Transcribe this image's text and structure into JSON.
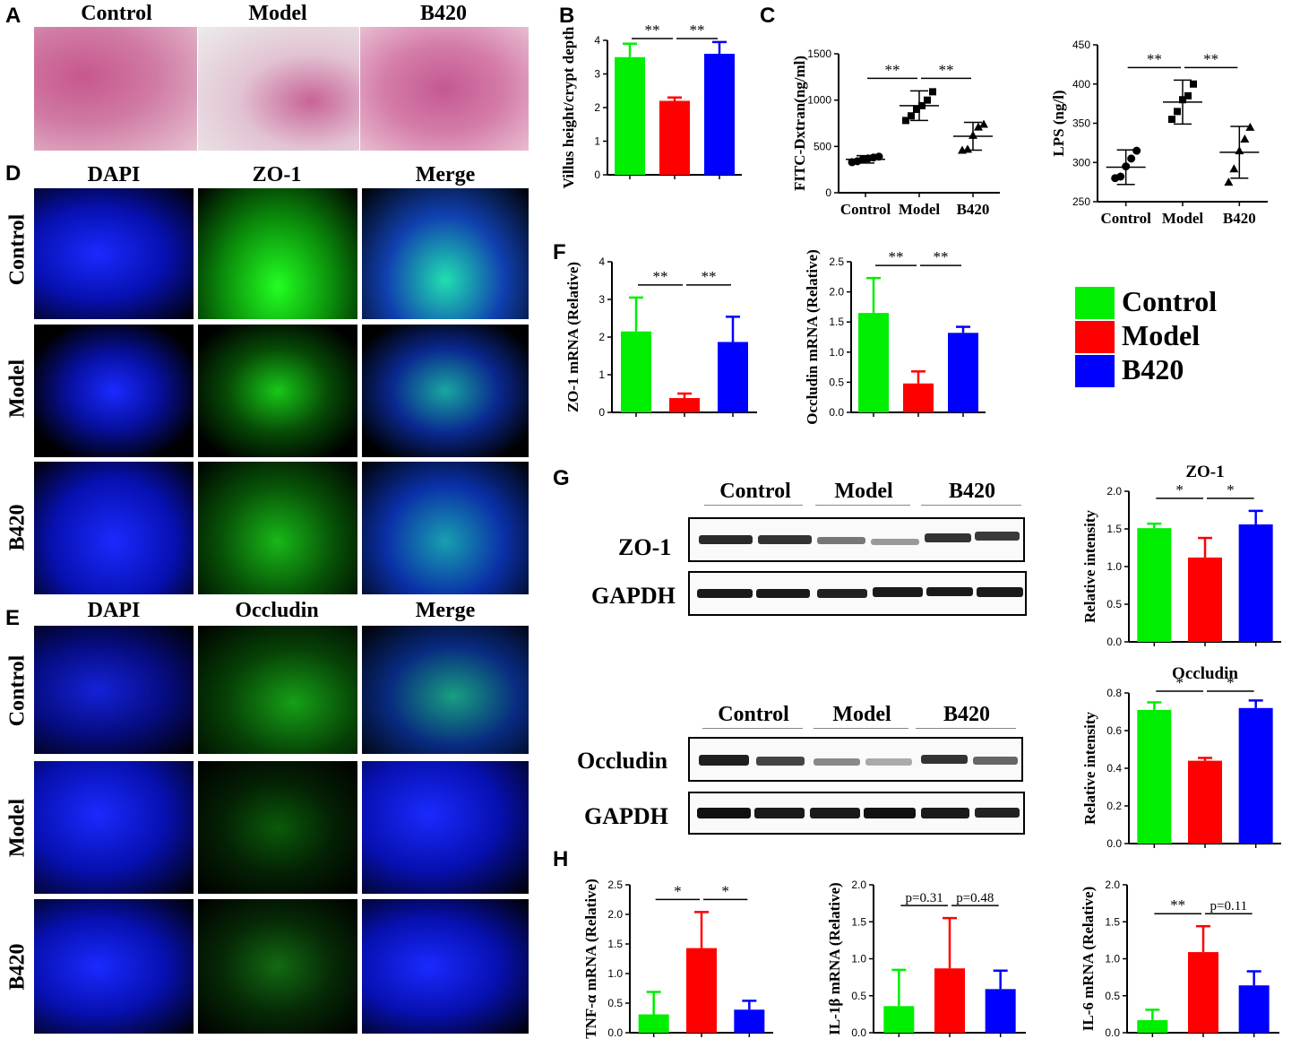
{
  "panels": {
    "A": "A",
    "B": "B",
    "C": "C",
    "D": "D",
    "E": "E",
    "F": "F",
    "G": "G",
    "H": "H"
  },
  "he": {
    "cols": [
      "Control",
      "Model",
      "B420"
    ]
  },
  "if_zo1": {
    "cols": [
      "DAPI",
      "ZO-1",
      "Merge"
    ],
    "rows": [
      "Control",
      "Model",
      "B420"
    ]
  },
  "if_occ": {
    "cols": [
      "DAPI",
      "Occludin",
      "Merge"
    ],
    "rows": [
      "Control",
      "Model",
      "B420"
    ]
  },
  "legend": [
    {
      "label": "Control",
      "color": "#00ee00"
    },
    {
      "label": "Model",
      "color": "#ff0000"
    },
    {
      "label": "B420",
      "color": "#0000ff"
    }
  ],
  "western": {
    "groups": [
      "Control",
      "Model",
      "B420"
    ],
    "zo1_label": "ZO-1",
    "occ_label": "Occludin",
    "gapdh_label": "GAPDH"
  },
  "colors": {
    "control": "#00ee00",
    "model": "#ff0000",
    "b420": "#0000ff"
  },
  "chart_data": [
    {
      "id": "B",
      "type": "bar",
      "categories": [
        "Control",
        "Model",
        "B420"
      ],
      "values": [
        3.5,
        2.2,
        3.6
      ],
      "errors": [
        0.4,
        0.1,
        0.35
      ],
      "ylabel": "Villus height/crypt depth",
      "ylim": [
        0,
        4
      ],
      "yticks": [
        "0",
        "1",
        "2",
        "3",
        "4"
      ],
      "sig": [
        "**",
        "**"
      ],
      "show_xticks": false
    },
    {
      "id": "C1",
      "type": "scatter",
      "categories": [
        "Control",
        "Model",
        "B420"
      ],
      "points": [
        [
          330,
          340,
          360,
          370,
          380,
          390
        ],
        [
          780,
          830,
          900,
          940,
          1000,
          1090
        ],
        [
          460,
          470,
          620,
          710,
          740
        ]
      ],
      "means": [
        360,
        940,
        610
      ],
      "sd": [
        40,
        160,
        150
      ],
      "ylabel": "FITC-Dxtran(ng/ml)",
      "ylim": [
        0,
        1500
      ],
      "yticks": [
        "0",
        "500",
        "1000",
        "1500"
      ],
      "sig": [
        "**",
        "**"
      ],
      "show_xticks": true
    },
    {
      "id": "C2",
      "type": "scatter",
      "categories": [
        "Control",
        "Model",
        "B420"
      ],
      "points": [
        [
          280,
          282,
          295,
          305,
          315
        ],
        [
          355,
          365,
          380,
          385,
          400
        ],
        [
          275,
          292,
          315,
          330,
          345
        ]
      ],
      "means": [
        294,
        377,
        313
      ],
      "sd": [
        22,
        28,
        33
      ],
      "ylabel": "LPS (ng/l)",
      "ylim": [
        250,
        450
      ],
      "yticks": [
        "250",
        "300",
        "350",
        "400",
        "450"
      ],
      "sig": [
        "**",
        "**"
      ],
      "show_xticks": true
    },
    {
      "id": "F1",
      "type": "bar",
      "categories": [
        "Control",
        "Model",
        "B420"
      ],
      "values": [
        2.15,
        0.38,
        1.87
      ],
      "errors": [
        0.9,
        0.12,
        0.67
      ],
      "ylabel": "ZO-1 mRNA (Relative)",
      "ylim": [
        0,
        4
      ],
      "yticks": [
        "0",
        "1",
        "2",
        "3",
        "4"
      ],
      "sig": [
        "**",
        "**"
      ],
      "show_xticks": false
    },
    {
      "id": "F2",
      "type": "bar",
      "categories": [
        "Control",
        "Model",
        "B420"
      ],
      "values": [
        1.65,
        0.48,
        1.32
      ],
      "errors": [
        0.58,
        0.2,
        0.1
      ],
      "ylabel": "Occludin mRNA (Relative)",
      "ylim": [
        0,
        2.5
      ],
      "yticks": [
        "0.0",
        "0.5",
        "1.0",
        "1.5",
        "2.0",
        "2.5"
      ],
      "sig": [
        "**",
        "**"
      ],
      "show_xticks": false
    },
    {
      "id": "G1",
      "type": "bar",
      "title": "ZO-1",
      "categories": [
        "Control",
        "Model",
        "B420"
      ],
      "values": [
        1.51,
        1.12,
        1.56
      ],
      "errors": [
        0.06,
        0.26,
        0.18
      ],
      "ylabel": "Relative intensity",
      "ylim": [
        0,
        2
      ],
      "yticks": [
        "0.0",
        "0.5",
        "1.0",
        "1.5",
        "2.0"
      ],
      "sig": [
        "*",
        "*"
      ],
      "show_xticks": false
    },
    {
      "id": "G2",
      "type": "bar",
      "title": "Occludin",
      "categories": [
        "Control",
        "Model",
        "B420"
      ],
      "values": [
        0.71,
        0.44,
        0.72
      ],
      "errors": [
        0.04,
        0.015,
        0.04
      ],
      "ylabel": "Relative intensity",
      "ylim": [
        0,
        0.8
      ],
      "yticks": [
        "0.0",
        "0.2",
        "0.4",
        "0.6",
        "0.8"
      ],
      "sig": [
        "*",
        "*"
      ],
      "show_xticks": false
    },
    {
      "id": "H1",
      "type": "bar",
      "categories": [
        "Control",
        "Model",
        "B420"
      ],
      "values": [
        0.31,
        1.43,
        0.39
      ],
      "errors": [
        0.38,
        0.61,
        0.15
      ],
      "ylabel": "TNF-α mRNA (Relative)",
      "ylim": [
        0,
        2.5
      ],
      "yticks": [
        "0.0",
        "0.5",
        "1.0",
        "1.5",
        "2.0",
        "2.5"
      ],
      "sig": [
        "*",
        "*"
      ],
      "show_xticks": false
    },
    {
      "id": "H2",
      "type": "bar",
      "categories": [
        "Control",
        "Model",
        "B420"
      ],
      "values": [
        0.36,
        0.87,
        0.59
      ],
      "errors": [
        0.49,
        0.68,
        0.25
      ],
      "ylabel": "IL-1β mRNA (Relative)",
      "ylim": [
        0,
        2.0
      ],
      "yticks": [
        "0.0",
        "0.5",
        "1.0",
        "1.5",
        "2.0"
      ],
      "sig": [
        "p=0.31",
        "p=0.48"
      ],
      "show_xticks": false
    },
    {
      "id": "H3",
      "type": "bar",
      "categories": [
        "Control",
        "Model",
        "B420"
      ],
      "values": [
        0.17,
        1.09,
        0.64
      ],
      "errors": [
        0.14,
        0.35,
        0.19
      ],
      "ylabel": "IL-6 mRNA (Relative)",
      "ylim": [
        0,
        2.0
      ],
      "yticks": [
        "0.0",
        "0.5",
        "1.0",
        "1.5",
        "2.0"
      ],
      "sig": [
        "**",
        "p=0.11"
      ],
      "show_xticks": false
    }
  ]
}
